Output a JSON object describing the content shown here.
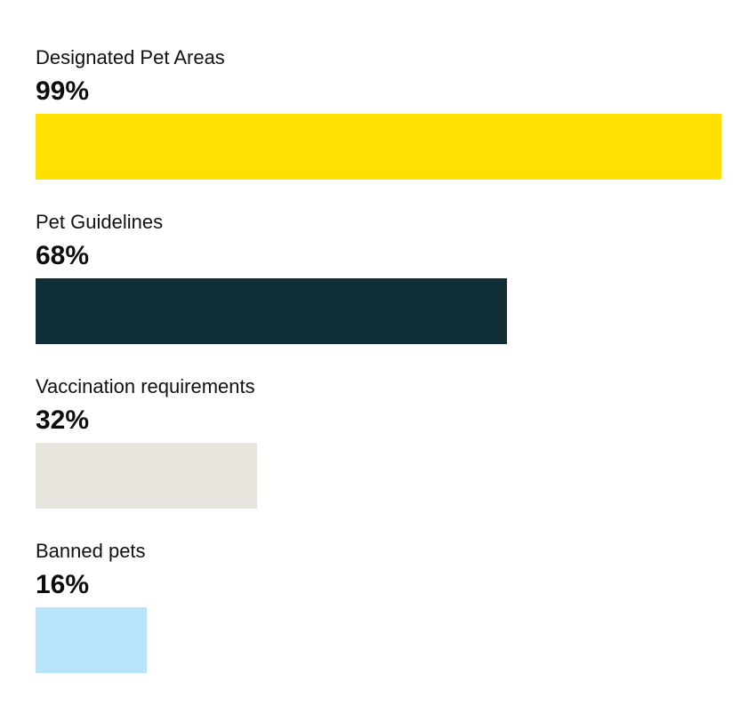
{
  "chart_data": {
    "type": "bar",
    "orientation": "horizontal",
    "categories": [
      "Designated Pet Areas",
      "Pet Guidelines",
      "Vaccination requirements",
      "Banned pets"
    ],
    "values": [
      99,
      68,
      32,
      16
    ],
    "value_labels": [
      "99%",
      "68%",
      "32%",
      "16%"
    ],
    "colors": [
      "#ffe000",
      "#0f2e36",
      "#e8e4de",
      "#b8e3f8"
    ],
    "unit": "%",
    "xlim": [
      0,
      100
    ],
    "grid": false,
    "legend": "none"
  }
}
